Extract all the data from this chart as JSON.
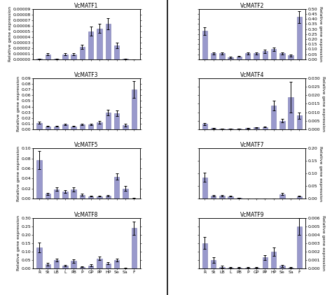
{
  "categories": [
    "R",
    "St",
    "LB",
    "L",
    "PB",
    "P",
    "GP",
    "PP",
    "HP",
    "Se",
    "Sa",
    "F"
  ],
  "subplots": [
    {
      "title": "VcMATF1",
      "values": [
        1e-06,
        9e-06,
        1e-06,
        9e-06,
        9e-06,
        2.2e-05,
        5e-05,
        5.5e-05,
        6.3e-05,
        2.5e-05,
        1e-06,
        0.0
      ],
      "errors": [
        5e-07,
        2e-06,
        5e-07,
        2e-06,
        2e-06,
        4e-06,
        8e-06,
        8e-06,
        1e-05,
        5e-06,
        5e-07,
        1e-07
      ],
      "ylim": [
        0,
        9e-05
      ],
      "yticks": [
        0.0,
        1e-05,
        2e-05,
        3e-05,
        4e-05,
        5e-05,
        6e-05,
        7e-05,
        8e-05,
        9e-05
      ],
      "ytick_labels": [
        "0.00000",
        "0.00001",
        "0.00002",
        "0.00003",
        "0.00004",
        "0.00005",
        "0.00006",
        "0.00007",
        "0.00008",
        "0.00009"
      ]
    },
    {
      "title": "VcMATF2",
      "values": [
        0.28,
        0.06,
        0.06,
        0.02,
        0.03,
        0.06,
        0.06,
        0.08,
        0.1,
        0.06,
        0.04,
        0.42
      ],
      "errors": [
        0.04,
        0.01,
        0.01,
        0.005,
        0.005,
        0.01,
        0.01,
        0.015,
        0.015,
        0.01,
        0.01,
        0.06
      ],
      "ylim": [
        0,
        0.5
      ],
      "yticks": [
        0.0,
        0.05,
        0.1,
        0.15,
        0.2,
        0.25,
        0.3,
        0.35,
        0.4,
        0.45,
        0.5
      ],
      "ytick_labels": [
        "0.00",
        "0.05",
        "0.10",
        "0.15",
        "0.20",
        "0.25",
        "0.30",
        "0.35",
        "0.40",
        "0.45",
        "0.50"
      ]
    },
    {
      "title": "VcMATF3",
      "values": [
        0.011,
        0.005,
        0.005,
        0.008,
        0.005,
        0.008,
        0.008,
        0.012,
        0.029,
        0.028,
        0.007,
        0.07
      ],
      "errors": [
        0.002,
        0.001,
        0.001,
        0.001,
        0.001,
        0.001,
        0.001,
        0.003,
        0.005,
        0.005,
        0.002,
        0.015
      ],
      "ylim": [
        0,
        0.09
      ],
      "yticks": [
        0.0,
        0.01,
        0.02,
        0.03,
        0.04,
        0.05,
        0.06,
        0.07,
        0.08,
        0.09
      ],
      "ytick_labels": [
        "0.00",
        "0.01",
        "0.02",
        "0.03",
        "0.04",
        "0.05",
        "0.06",
        "0.07",
        "0.08",
        "0.09"
      ]
    },
    {
      "title": "VcMATF4",
      "values": [
        0.003,
        0.0005,
        0.0002,
        0.0002,
        0.0002,
        0.0005,
        0.001,
        0.0012,
        0.014,
        0.005,
        0.019,
        0.008
      ],
      "errors": [
        0.0005,
        0.0001,
        0.0001,
        0.0001,
        0.0001,
        0.0001,
        0.0002,
        0.0003,
        0.003,
        0.001,
        0.009,
        0.002
      ],
      "ylim": [
        0,
        0.03
      ],
      "yticks": [
        0.0,
        0.005,
        0.01,
        0.015,
        0.02,
        0.025,
        0.03
      ],
      "ytick_labels": [
        "0.000",
        "0.005",
        "0.010",
        "0.015",
        "0.020",
        "0.025",
        "0.030"
      ]
    },
    {
      "title": "VcMATF5",
      "values": [
        0.077,
        0.01,
        0.019,
        0.014,
        0.018,
        0.008,
        0.005,
        0.005,
        0.006,
        0.044,
        0.02,
        0.001
      ],
      "errors": [
        0.018,
        0.002,
        0.004,
        0.003,
        0.004,
        0.002,
        0.001,
        0.001,
        0.001,
        0.006,
        0.005,
        0.0005
      ],
      "ylim": [
        0,
        0.1
      ],
      "yticks": [
        0.0,
        0.02,
        0.04,
        0.06,
        0.08,
        0.1
      ],
      "ytick_labels": [
        "0.00",
        "0.02",
        "0.04",
        "0.06",
        "0.08",
        "0.10"
      ]
    },
    {
      "title": "VcMATF7",
      "values": [
        0.085,
        0.012,
        0.013,
        0.01,
        0.004,
        0.001,
        0.001,
        0.001,
        0.001,
        0.018,
        0.0,
        0.01
      ],
      "errors": [
        0.018,
        0.002,
        0.003,
        0.002,
        0.001,
        0.0005,
        0.0005,
        0.0005,
        0.0005,
        0.004,
        0.0005,
        0.002
      ],
      "ylim": [
        0,
        0.2
      ],
      "yticks": [
        0.0,
        0.05,
        0.1,
        0.15,
        0.2
      ],
      "ytick_labels": [
        "0.00",
        "0.05",
        "0.10",
        "0.15",
        "0.20"
      ]
    },
    {
      "title": "VcMATF8",
      "values": [
        0.125,
        0.025,
        0.05,
        0.015,
        0.045,
        0.01,
        0.018,
        0.06,
        0.03,
        0.05,
        0.002,
        0.24
      ],
      "errors": [
        0.03,
        0.007,
        0.01,
        0.004,
        0.01,
        0.003,
        0.005,
        0.01,
        0.006,
        0.01,
        0.001,
        0.04
      ],
      "ylim": [
        0,
        0.3
      ],
      "yticks": [
        0.0,
        0.05,
        0.1,
        0.15,
        0.2,
        0.25,
        0.3
      ],
      "ytick_labels": [
        "0.00",
        "0.05",
        "0.10",
        "0.15",
        "0.20",
        "0.25",
        "0.30"
      ]
    },
    {
      "title": "VcMATF9",
      "values": [
        0.003,
        0.001,
        0.0002,
        0.0001,
        0.0001,
        0.0001,
        0.0001,
        0.0013,
        0.002,
        0.0003,
        0.0001,
        0.005
      ],
      "errors": [
        0.0007,
        0.0003,
        0.0001,
        5e-05,
        5e-05,
        5e-05,
        5e-05,
        0.0003,
        0.0005,
        0.0001,
        5e-05,
        0.001
      ],
      "ylim": [
        0,
        0.006
      ],
      "yticks": [
        0.0,
        0.001,
        0.002,
        0.003,
        0.004,
        0.005,
        0.006
      ],
      "ytick_labels": [
        "0.000",
        "0.001",
        "0.002",
        "0.003",
        "0.004",
        "0.005",
        "0.006"
      ]
    }
  ],
  "bar_color": "#9999cc",
  "bar_edge_color": "#7777aa",
  "bar_width": 0.6,
  "tick_fontsize": 4.5,
  "title_fontsize": 5.5,
  "label_fontsize": 4.5,
  "ylabel": "Relative gene expression"
}
